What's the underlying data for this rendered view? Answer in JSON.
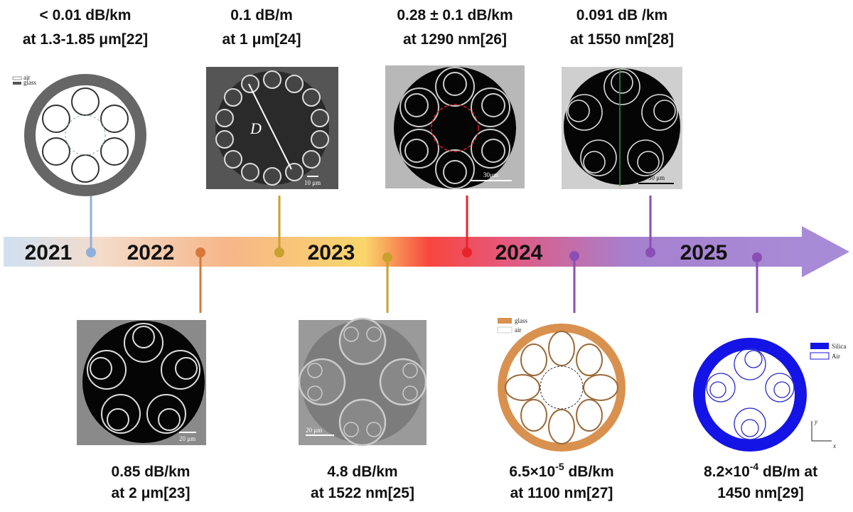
{
  "years": [
    "2021",
    "2022",
    "2023",
    "2024",
    "2025"
  ],
  "milestones": [
    {
      "line1": "< 0.01 dB/km",
      "line2": "at 1.3-1.85 μm[22]"
    },
    {
      "line1": "0.85 dB/km",
      "line2": "at 2 μm[23]"
    },
    {
      "line1": "0.1 dB/m",
      "line2": "at 1 μm[24]"
    },
    {
      "line1": "4.8 dB/km",
      "line2": "at 1522 nm[25]"
    },
    {
      "line1": "0.28 ± 0.1 dB/km",
      "line2": "at 1290 nm[26]"
    },
    {
      "line1": {
        "base": "6.5×10",
        "sup": "-5",
        "rest": " dB/km"
      },
      "line2": "at 1100 nm[27]"
    },
    {
      "line1": "0.091 dB /km",
      "line2": "at 1550 nm[28]"
    },
    {
      "line1": {
        "base": "8.2×10",
        "sup": "-4",
        "rest": " dB/m at"
      },
      "line2": "1450 nm[29]"
    }
  ],
  "figure_labels": {
    "fig22_legend": [
      "air",
      "glass"
    ],
    "fig24_diameter": "D",
    "fig24_scale": "10 μm",
    "fig23_scale": "20 μm",
    "fig25_scale": "20 μm",
    "fig26_scale": "30μm",
    "fig27_legend": [
      "glass",
      "air"
    ],
    "fig28_scale": "30 μm",
    "fig29_legend": [
      "Silica",
      "Air"
    ],
    "fig29_axes": [
      "y",
      "x"
    ]
  }
}
